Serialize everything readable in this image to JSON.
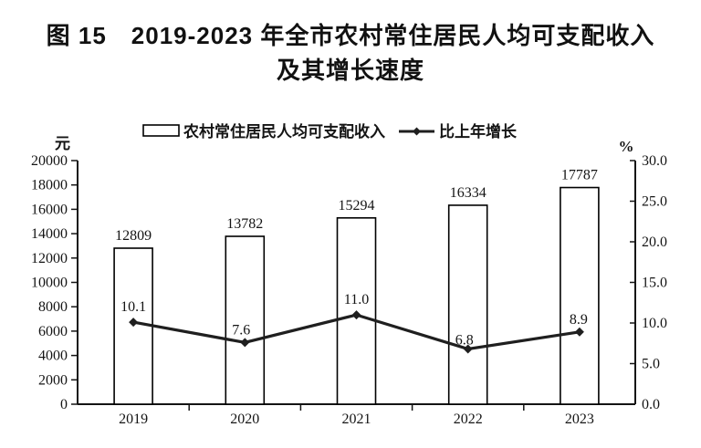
{
  "title": {
    "line1": "图 15　2019-2023 年全市农村常住居民人均可支配收入",
    "line2": "及其增长速度"
  },
  "chart_data": {
    "type": "combo",
    "title": "2019-2023 年全市农村常住居民人均可支配收入及其增长速度",
    "categories": [
      "2019",
      "2020",
      "2021",
      "2022",
      "2023"
    ],
    "series": [
      {
        "name": "农村常住居民人均可支配收入",
        "type": "bar",
        "axis": "left",
        "unit": "元",
        "values": [
          12809,
          13782,
          15294,
          16334,
          17787
        ]
      },
      {
        "name": "比上年增长",
        "type": "line",
        "axis": "right",
        "unit": "%",
        "values": [
          10.1,
          7.6,
          11.0,
          6.8,
          8.9
        ]
      }
    ],
    "left_axis": {
      "unit": "元",
      "min": 0,
      "max": 20000,
      "step": 2000
    },
    "right_axis": {
      "unit": "%",
      "min": 0,
      "max": 30,
      "step": 5,
      "decimals": 1
    },
    "grid": false,
    "legend_position": "top",
    "data_labels": true,
    "colors": {
      "ink": "#141414",
      "bar_fill": "#ffffff",
      "bar_stroke": "#000000",
      "line": "#1f1f1f",
      "background": "#ffffff"
    }
  }
}
